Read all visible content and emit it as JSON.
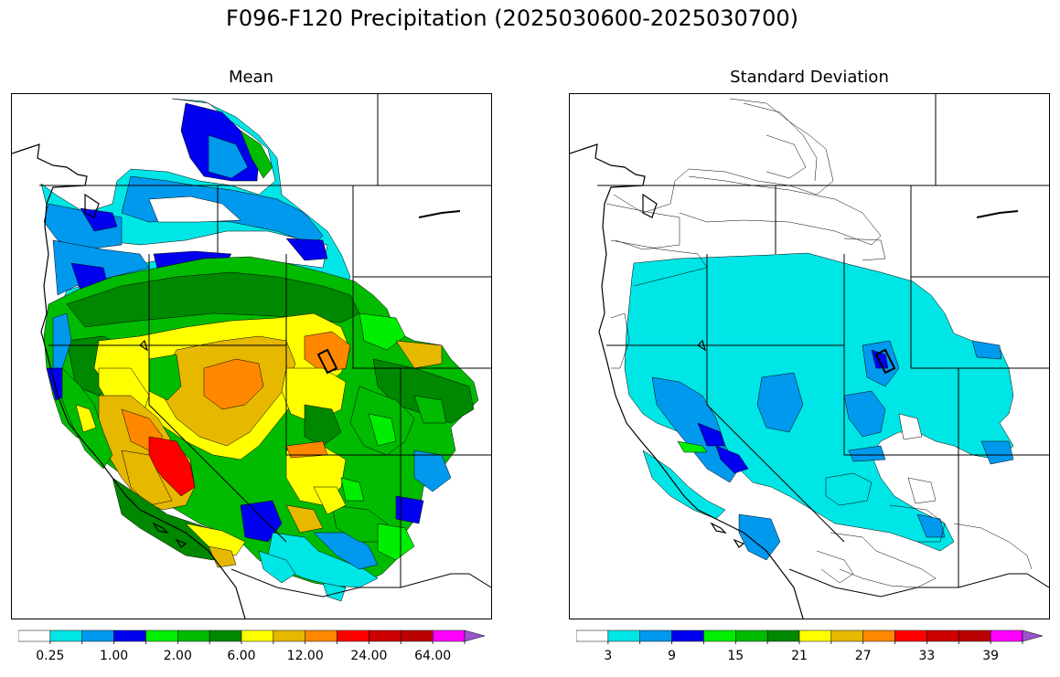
{
  "figure": {
    "suptitle": "F096-F120 Precipitation (2025030600-2025030700)"
  },
  "panels": [
    {
      "title": "Mean",
      "colorbar": {
        "colors": [
          "#ffffff",
          "#00e5e5",
          "#0099ee",
          "#0000ee",
          "#00ee00",
          "#00bb00",
          "#008800",
          "#ffff00",
          "#e6b800",
          "#ff8800",
          "#ff0000",
          "#cc0000",
          "#bb0000",
          "#ff00ff",
          "#9955cc"
        ],
        "tick_labels": [
          "0.25",
          "1.00",
          "2.00",
          "6.00",
          "12.00",
          "24.00",
          "64.00"
        ],
        "extend": "max"
      }
    },
    {
      "title": "Standard Deviation",
      "colorbar": {
        "colors": [
          "#ffffff",
          "#00e5e5",
          "#0099ee",
          "#0000ee",
          "#00ee00",
          "#00bb00",
          "#008800",
          "#ffff00",
          "#e6b800",
          "#ff8800",
          "#ff0000",
          "#cc0000",
          "#bb0000",
          "#ff00ff",
          "#9955cc"
        ],
        "tick_labels": [
          "3",
          "9",
          "15",
          "21",
          "27",
          "33",
          "39"
        ],
        "extend": "max"
      }
    }
  ]
}
